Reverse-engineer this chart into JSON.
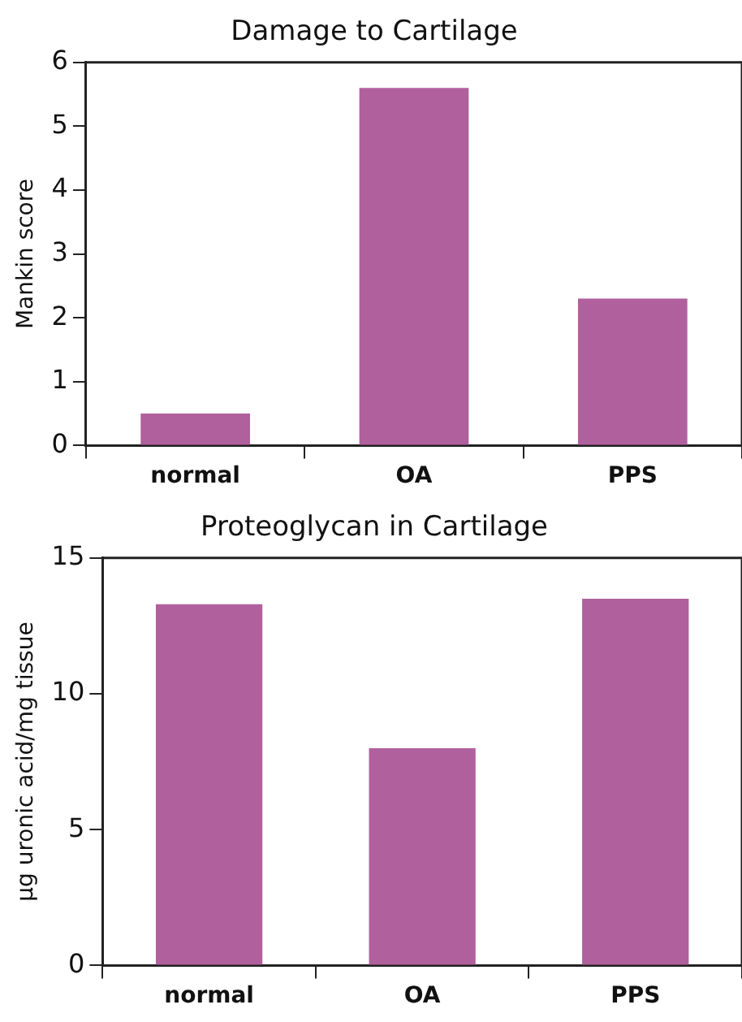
{
  "chart_data": [
    {
      "type": "bar",
      "title": "Damage to Cartilage",
      "ylabel": "Mankin score",
      "categories": [
        "normal",
        "OA",
        "PPS"
      ],
      "values": [
        0.5,
        5.6,
        2.3
      ],
      "color": "#b0609c",
      "ylim": [
        0,
        6
      ],
      "yticks": [
        0,
        1,
        2,
        3,
        4,
        5,
        6
      ],
      "grid": false
    },
    {
      "type": "bar",
      "title": "Proteoglycan in Cartilage",
      "ylabel": "µg uronic acid/mg tissue",
      "categories": [
        "normal",
        "OA",
        "PPS"
      ],
      "values": [
        13.3,
        8.0,
        13.5
      ],
      "color": "#b0609c",
      "ylim": [
        0,
        15
      ],
      "yticks": [
        0,
        5,
        10,
        15
      ],
      "grid": false
    }
  ]
}
